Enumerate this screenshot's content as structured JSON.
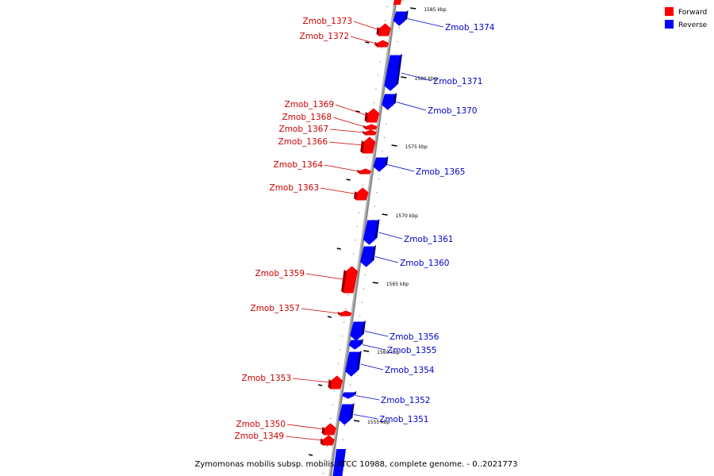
{
  "caption": "Zymomonas mobilis subsp. mobilis ATCC 10988, complete genome. - 0..2021773",
  "legend": [
    {
      "label": "Forward",
      "color": "#ff0000"
    },
    {
      "label": "Reverse",
      "color": "#0000ff"
    }
  ],
  "colors": {
    "forward": "#ff0000",
    "reverse": "#0000ff",
    "forward_label": "#cc0000",
    "reverse_label": "#0000cc"
  },
  "ticks": [
    "1585 kbp",
    "1580 kbp",
    "1575 kbp",
    "1570 kbp",
    "1565 kbp",
    "1560 kbp",
    "1555 kbp"
  ],
  "genes": [
    {
      "name": "Zmob_1374",
      "strand": "reverse"
    },
    {
      "name": "Zmob_1373",
      "strand": "forward"
    },
    {
      "name": "Zmob_1372",
      "strand": "forward"
    },
    {
      "name": "Zmob_1371",
      "strand": "reverse"
    },
    {
      "name": "Zmob_1370",
      "strand": "reverse"
    },
    {
      "name": "Zmob_1369",
      "strand": "forward"
    },
    {
      "name": "Zmob_1368",
      "strand": "forward"
    },
    {
      "name": "Zmob_1367",
      "strand": "forward"
    },
    {
      "name": "Zmob_1366",
      "strand": "forward"
    },
    {
      "name": "Zmob_1365",
      "strand": "reverse"
    },
    {
      "name": "Zmob_1364",
      "strand": "forward"
    },
    {
      "name": "Zmob_1363",
      "strand": "forward"
    },
    {
      "name": "Zmob_1361",
      "strand": "reverse"
    },
    {
      "name": "Zmob_1360",
      "strand": "reverse"
    },
    {
      "name": "Zmob_1359",
      "strand": "forward"
    },
    {
      "name": "Zmob_1357",
      "strand": "forward"
    },
    {
      "name": "Zmob_1356",
      "strand": "reverse"
    },
    {
      "name": "Zmob_1355",
      "strand": "reverse"
    },
    {
      "name": "Zmob_1354",
      "strand": "reverse"
    },
    {
      "name": "Zmob_1353",
      "strand": "forward"
    },
    {
      "name": "Zmob_1352",
      "strand": "reverse"
    },
    {
      "name": "Zmob_1351",
      "strand": "reverse"
    },
    {
      "name": "Zmob_1350",
      "strand": "forward"
    },
    {
      "name": "Zmob_1349",
      "strand": "forward"
    }
  ]
}
